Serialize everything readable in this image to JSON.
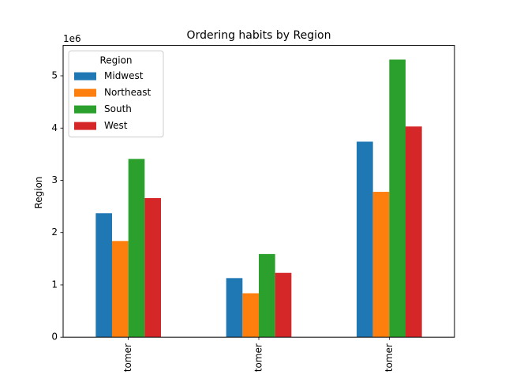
{
  "chart_data": {
    "type": "bar",
    "title": "Ordering habits by Region",
    "xlabel": "",
    "ylabel": "Region",
    "y_offset_label": "1e6",
    "categories": [
      "tomer",
      "tomer",
      "tomer"
    ],
    "ylim": [
      0,
      5580000
    ],
    "yticks": [
      0,
      1,
      2,
      3,
      4,
      5
    ],
    "ytick_labels": [
      "0",
      "1",
      "2",
      "3",
      "4",
      "5"
    ],
    "grid": false,
    "legend": {
      "title": "Region",
      "placement": "top-left"
    },
    "series": [
      {
        "name": "Midwest",
        "color": "#1f77b4",
        "values": [
          2370000,
          1130000,
          3740000
        ]
      },
      {
        "name": "Northeast",
        "color": "#ff7f0e",
        "values": [
          1840000,
          840000,
          2780000
        ]
      },
      {
        "name": "South",
        "color": "#2ca02c",
        "values": [
          3410000,
          1590000,
          5310000
        ]
      },
      {
        "name": "West",
        "color": "#d62728",
        "values": [
          2660000,
          1230000,
          4030000
        ]
      }
    ]
  }
}
